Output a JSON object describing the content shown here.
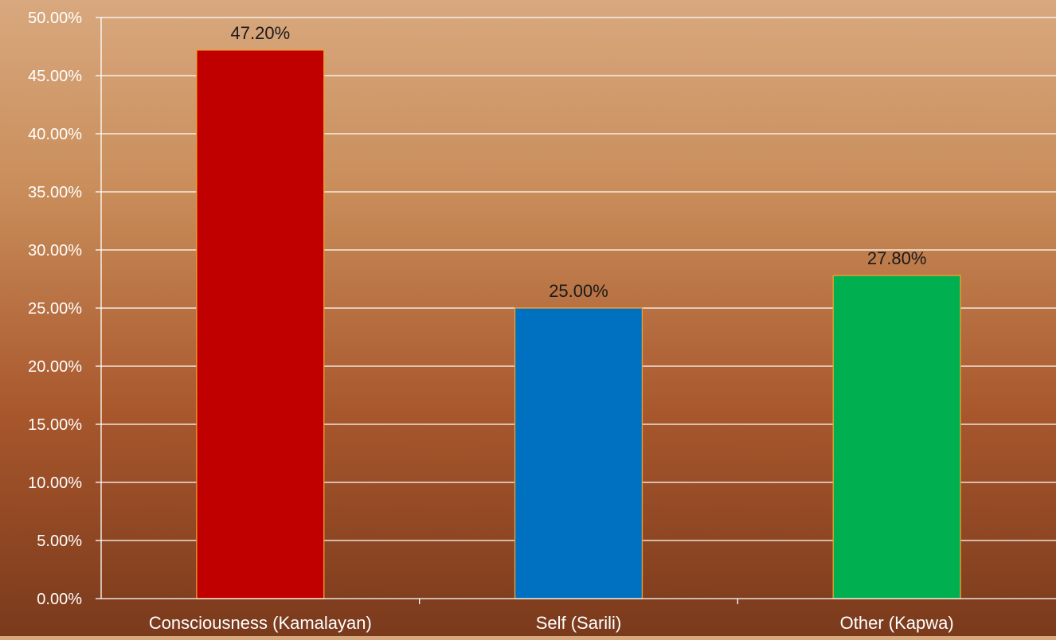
{
  "chart_data": {
    "type": "bar",
    "title": "",
    "xlabel": "",
    "ylabel": "",
    "categories": [
      "Consciousness (Kamalayan)",
      "Self (Sarili)",
      "Other (Kapwa)"
    ],
    "values": [
      47.2,
      25.0,
      27.8
    ],
    "data_labels": [
      "47.20%",
      "25.00%",
      "27.80%"
    ],
    "bar_colors": [
      "#c00000",
      "#0070c0",
      "#00b050"
    ],
    "bar_border_color": "#f0a030",
    "ylim": [
      0,
      50
    ],
    "y_ticks": [
      0,
      5,
      10,
      15,
      20,
      25,
      30,
      35,
      40,
      45,
      50
    ],
    "y_tick_labels": [
      "0.00%",
      "5.00%",
      "10.00%",
      "15.00%",
      "20.00%",
      "25.00%",
      "30.00%",
      "35.00%",
      "40.00%",
      "45.00%",
      "50.00%"
    ],
    "grid": true,
    "legend": "none"
  }
}
